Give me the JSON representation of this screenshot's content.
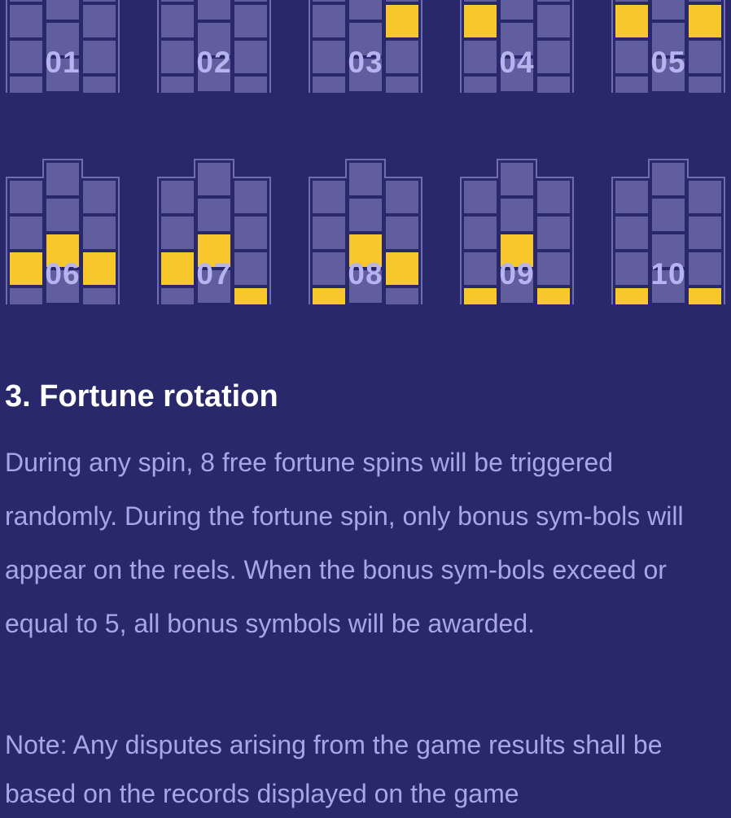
{
  "colors": {
    "background": "#29286b",
    "cell_inactive": "#605e9e",
    "cell_active": "#f7c72c",
    "frame_border": "#6f6cb2"
  },
  "paylines": [
    {
      "label": "01",
      "lit": []
    },
    {
      "label": "02",
      "lit": [
        "c0"
      ]
    },
    {
      "label": "03",
      "lit": [
        "c0",
        "r1"
      ]
    },
    {
      "label": "04",
      "lit": [
        "l1",
        "c0"
      ]
    },
    {
      "label": "05",
      "lit": [
        "l1",
        "c0",
        "r1"
      ]
    },
    {
      "label": "06",
      "lit": [
        "l2",
        "c2",
        "r2"
      ]
    },
    {
      "label": "07",
      "lit": [
        "l2",
        "c2",
        "r3"
      ]
    },
    {
      "label": "08",
      "lit": [
        "l3",
        "c2",
        "r2"
      ]
    },
    {
      "label": "09",
      "lit": [
        "l3",
        "c2",
        "r3"
      ]
    },
    {
      "label": "10",
      "lit": [
        "l3",
        "c4",
        "r3"
      ]
    }
  ],
  "section": {
    "title": "3. Fortune rotation",
    "body": "During any spin, 8 free fortune spins will be triggered randomly. During the fortune spin, only bonus sym-bols will appear on the reels. When the bonus sym-bols exceed or equal to 5, all bonus symbols will be awarded.",
    "note": "Note: Any disputes arising from the game results shall be based on the records displayed on the game"
  }
}
